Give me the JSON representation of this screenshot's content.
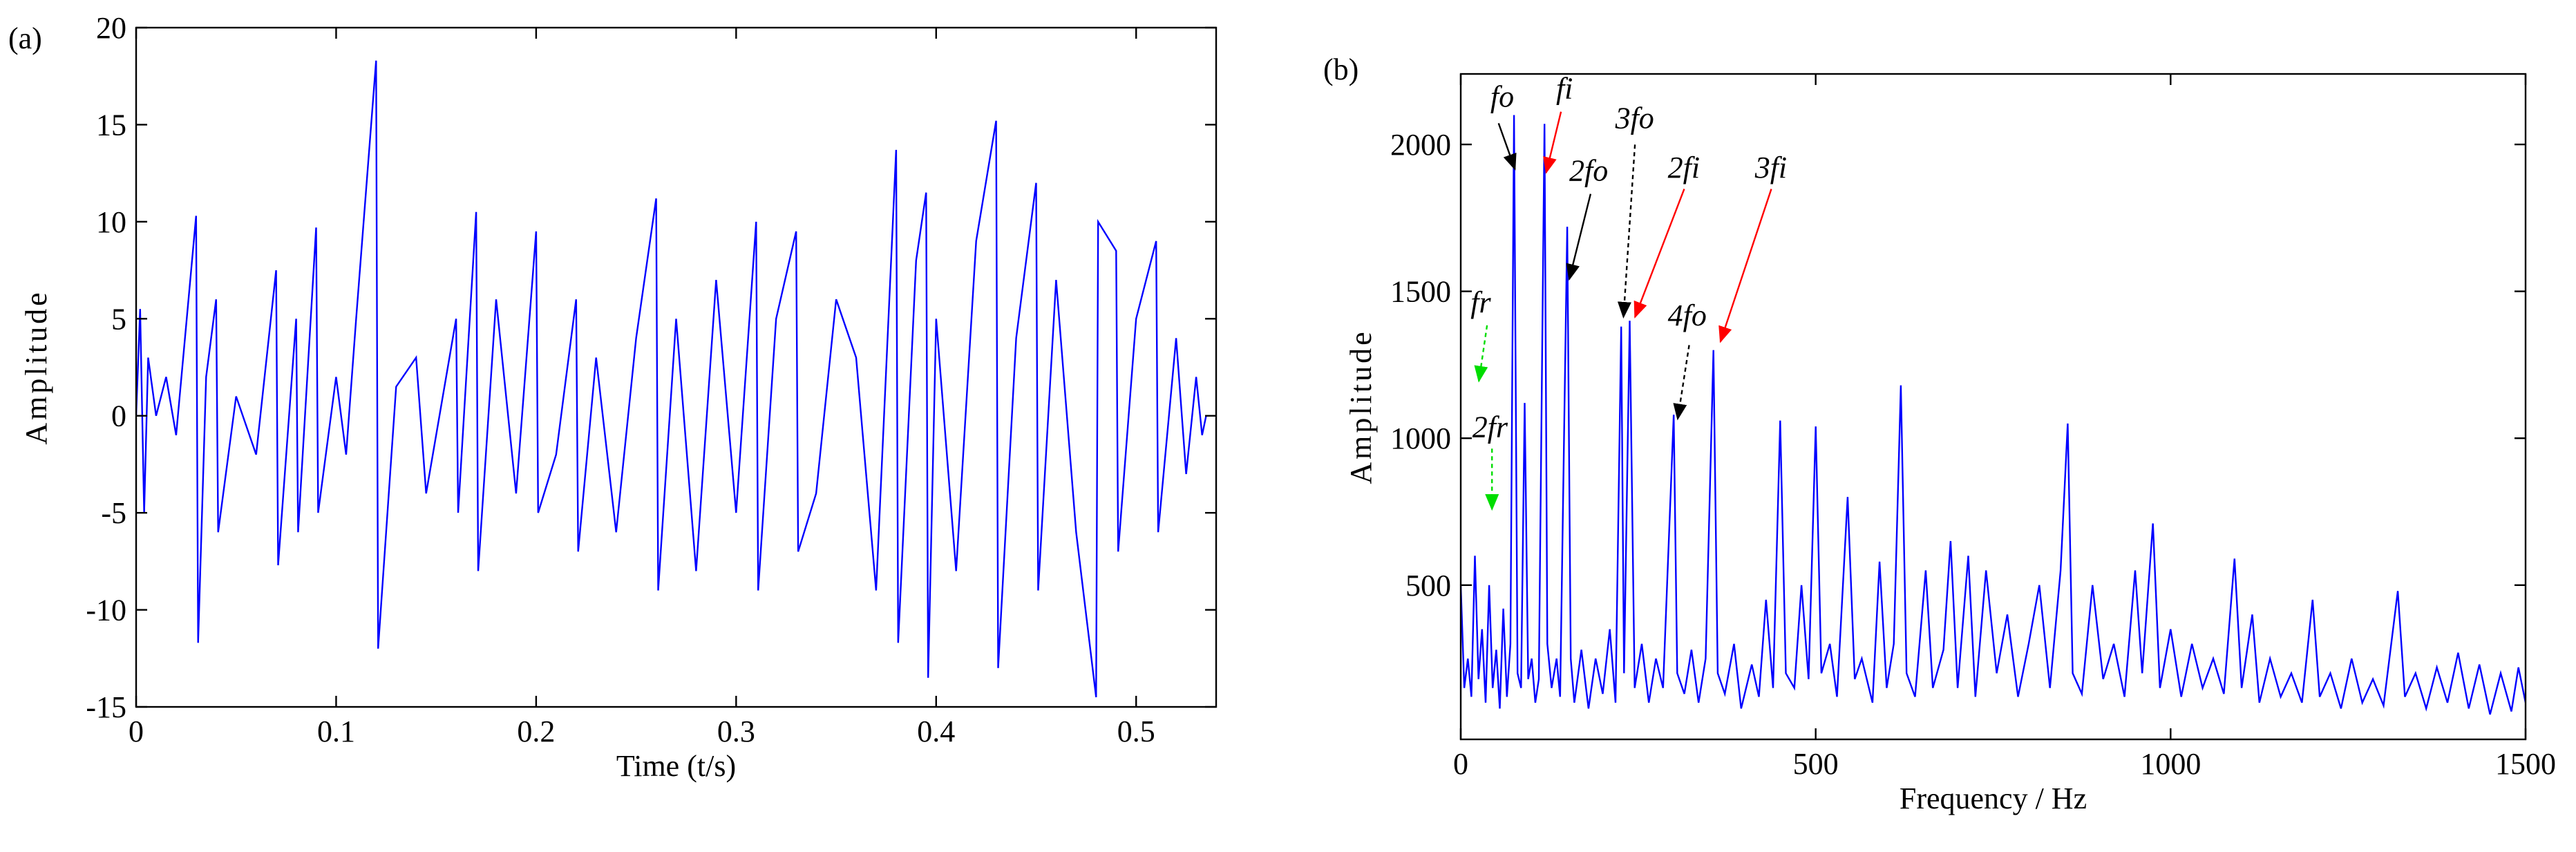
{
  "chart_data": [
    {
      "type": "line",
      "panel_label": "(a)",
      "xlabel": "Time (t/s)",
      "ylabel": "Amplitude",
      "xlim": [
        0,
        0.54
      ],
      "xticks": [
        0,
        0.1,
        0.2,
        0.3,
        0.4,
        0.5
      ],
      "ylim": [
        -15,
        20
      ],
      "yticks": [
        -15,
        -10,
        -5,
        0,
        5,
        10,
        15,
        20
      ],
      "series": [
        {
          "color": "#0000ff",
          "x": [
            0,
            0.002,
            0.004,
            0.006,
            0.01,
            0.015,
            0.02,
            0.03,
            0.031,
            0.035,
            0.04,
            0.041,
            0.05,
            0.06,
            0.07,
            0.071,
            0.08,
            0.081,
            0.09,
            0.091,
            0.1,
            0.105,
            0.11,
            0.12,
            0.121,
            0.13,
            0.14,
            0.145,
            0.16,
            0.161,
            0.17,
            0.171,
            0.18,
            0.19,
            0.2,
            0.201,
            0.21,
            0.22,
            0.221,
            0.23,
            0.24,
            0.25,
            0.26,
            0.261,
            0.27,
            0.28,
            0.29,
            0.3,
            0.31,
            0.311,
            0.32,
            0.33,
            0.331,
            0.34,
            0.35,
            0.36,
            0.37,
            0.38,
            0.381,
            0.39,
            0.395,
            0.396,
            0.4,
            0.41,
            0.42,
            0.43,
            0.431,
            0.44,
            0.45,
            0.451,
            0.46,
            0.47,
            0.48,
            0.481,
            0.49,
            0.491,
            0.5,
            0.51,
            0.511,
            0.52,
            0.525,
            0.53,
            0.533,
            0.535
          ],
          "values": [
            0,
            5.5,
            -5,
            3,
            0,
            2,
            -1,
            10.3,
            -11.7,
            2,
            6,
            -6,
            1,
            -2,
            7.5,
            -7.7,
            5,
            -6,
            9.7,
            -5,
            2,
            -2,
            5,
            18.3,
            -12,
            1.5,
            3,
            -4,
            5,
            -5,
            10.5,
            -8,
            6,
            -4,
            9.5,
            -5,
            -2,
            6,
            -7,
            3,
            -6,
            4,
            11.2,
            -9,
            5,
            -8,
            7,
            -5,
            10,
            -9,
            5,
            9.5,
            -7,
            -4,
            6,
            3,
            -9,
            13.7,
            -11.7,
            8,
            11.5,
            -13.5,
            5,
            -8,
            9,
            15.2,
            -13,
            4,
            12,
            -9,
            7,
            -6,
            -14.5,
            10,
            8.5,
            -7,
            5,
            9,
            -6,
            4,
            -3,
            2,
            -1,
            0
          ]
        }
      ]
    },
    {
      "type": "line",
      "panel_label": "(b)",
      "xlabel": "Frequency / Hz",
      "ylabel": "Amplitude",
      "xlim": [
        0,
        1500
      ],
      "xticks": [
        0,
        500,
        1000,
        1500
      ],
      "ylim": [
        -25,
        2240
      ],
      "yticks": [
        500,
        1000,
        1500,
        2000
      ],
      "annotations": [
        {
          "text": "fo",
          "color": "#000000"
        },
        {
          "text": "fi",
          "color": "#ff0000"
        },
        {
          "text": "2fo",
          "color": "#000000"
        },
        {
          "text": "3fo",
          "color": "#000000"
        },
        {
          "text": "2fi",
          "color": "#ff0000"
        },
        {
          "text": "3fi",
          "color": "#ff0000"
        },
        {
          "text": "4fo",
          "color": "#000000"
        },
        {
          "text": "fr",
          "color": "#00dd00"
        },
        {
          "text": "2fr",
          "color": "#00dd00"
        }
      ],
      "series": [
        {
          "color": "#0000ff",
          "x": [
            0,
            5,
            10,
            15,
            20,
            25,
            30,
            35,
            40,
            45,
            50,
            55,
            60,
            65,
            70,
            75,
            80,
            85,
            90,
            95,
            100,
            105,
            110,
            118,
            122,
            128,
            135,
            140,
            150,
            155,
            160,
            170,
            180,
            190,
            200,
            210,
            218,
            226,
            230,
            238,
            245,
            255,
            265,
            275,
            285,
            300,
            305,
            315,
            325,
            335,
            345,
            356,
            362,
            372,
            385,
            395,
            410,
            420,
            430,
            440,
            450,
            458,
            470,
            480,
            490,
            500,
            508,
            520,
            530,
            545,
            555,
            565,
            580,
            590,
            600,
            610,
            620,
            628,
            640,
            655,
            665,
            680,
            690,
            700,
            715,
            725,
            740,
            755,
            770,
            785,
            800,
            815,
            830,
            845,
            855,
            862,
            875,
            890,
            905,
            920,
            935,
            950,
            960,
            975,
            985,
            1000,
            1015,
            1030,
            1045,
            1060,
            1075,
            1090,
            1100,
            1115,
            1125,
            1140,
            1155,
            1170,
            1185,
            1200,
            1210,
            1225,
            1240,
            1255,
            1270,
            1285,
            1300,
            1320,
            1330,
            1345,
            1360,
            1375,
            1390,
            1405,
            1420,
            1435,
            1450,
            1465,
            1480,
            1490,
            1500
          ],
          "values": [
            500,
            150,
            250,
            120,
            600,
            180,
            350,
            100,
            500,
            150,
            280,
            80,
            420,
            120,
            300,
            2100,
            200,
            150,
            1120,
            180,
            250,
            100,
            180,
            2070,
            300,
            150,
            250,
            120,
            1720,
            250,
            100,
            280,
            80,
            250,
            130,
            350,
            100,
            1380,
            200,
            1400,
            150,
            300,
            100,
            250,
            150,
            1080,
            200,
            130,
            280,
            100,
            250,
            1300,
            200,
            130,
            300,
            80,
            230,
            120,
            450,
            150,
            1060,
            200,
            150,
            500,
            180,
            1040,
            200,
            300,
            120,
            800,
            180,
            250,
            100,
            580,
            150,
            300,
            1180,
            200,
            120,
            550,
            150,
            280,
            650,
            150,
            600,
            120,
            550,
            200,
            400,
            120,
            300,
            500,
            150,
            550,
            1050,
            200,
            130,
            500,
            180,
            300,
            120,
            550,
            200,
            710,
            150,
            350,
            120,
            300,
            150,
            250,
            130,
            590,
            150,
            400,
            100,
            250,
            120,
            200,
            100,
            450,
            120,
            200,
            80,
            250,
            100,
            180,
            90,
            480,
            120,
            200,
            80,
            220,
            100,
            270,
            80,
            230,
            60,
            200,
            70,
            220,
            100
          ]
        }
      ]
    }
  ]
}
